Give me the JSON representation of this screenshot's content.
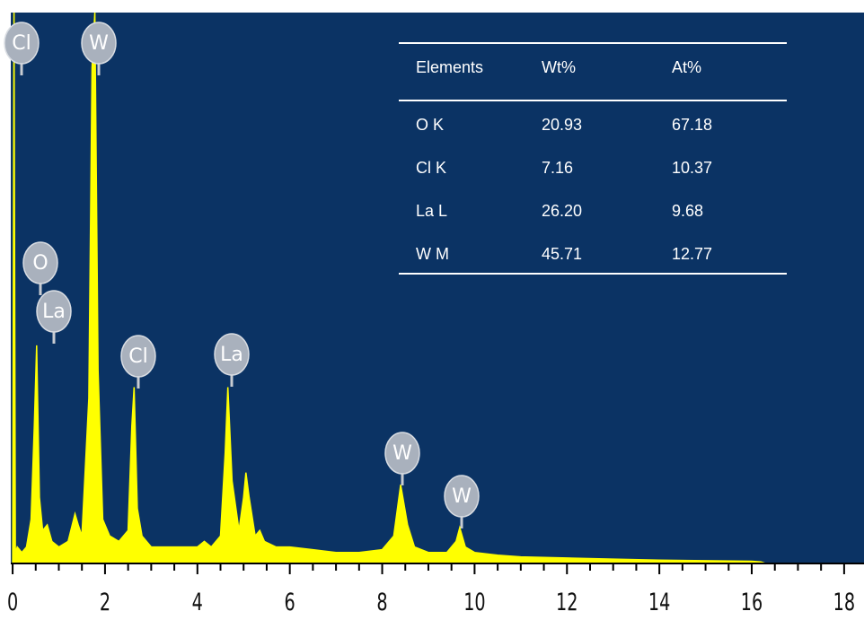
{
  "chart_data": {
    "type": "area",
    "color": "#ffff00",
    "x": [
      0,
      0.03,
      0.06,
      0.1,
      0.2,
      0.3,
      0.4,
      0.47,
      0.52,
      0.58,
      0.65,
      0.75,
      0.85,
      1.0,
      1.2,
      1.35,
      1.42,
      1.5,
      1.65,
      1.72,
      1.78,
      1.85,
      1.95,
      2.1,
      2.3,
      2.5,
      2.58,
      2.63,
      2.7,
      2.8,
      3.0,
      3.3,
      3.6,
      4.0,
      4.15,
      4.3,
      4.5,
      4.6,
      4.66,
      4.75,
      4.9,
      5.0,
      5.05,
      5.12,
      5.25,
      5.35,
      5.45,
      5.7,
      6.0,
      6.5,
      7.0,
      7.5,
      8.0,
      8.25,
      8.4,
      8.55,
      8.7,
      9.0,
      9.4,
      9.6,
      9.68,
      9.8,
      10.0,
      10.5,
      11.0,
      12,
      13,
      14,
      15,
      16,
      16.2,
      16.3,
      18
    ],
    "values": [
      0,
      100,
      2,
      3,
      2,
      3,
      8,
      25,
      39.6,
      12,
      6,
      7,
      4,
      3,
      4,
      9,
      7,
      5,
      30,
      90,
      100,
      35,
      8,
      5,
      4,
      6,
      25,
      32,
      10,
      5,
      3,
      3,
      3,
      3,
      4,
      3,
      5,
      20,
      32,
      15,
      6,
      12,
      16.5,
      12,
      5,
      6,
      4,
      3,
      3,
      2.5,
      2,
      2,
      2.5,
      5,
      14.3,
      7,
      3,
      2,
      2,
      4,
      6.5,
      3,
      2,
      1.5,
      1.2,
      1,
      0.8,
      0.6,
      0.5,
      0.4,
      0.3,
      0,
      0
    ],
    "xlim": [
      -0.04,
      18.43
    ],
    "ylim": [
      0,
      100
    ],
    "xticks": [
      0,
      2,
      4,
      6,
      8,
      10,
      12,
      14,
      16,
      18
    ],
    "xminorticks": [
      0.5,
      1,
      1.5,
      2.5,
      3,
      3.5,
      4.5,
      5,
      5.5,
      6.5,
      7,
      7.5,
      8.5,
      9,
      9.5,
      10.5,
      11,
      11.5,
      12.5,
      13,
      13.5,
      14.5,
      15,
      15.5,
      16.5,
      17,
      17.5
    ],
    "annotations": [
      "Cl",
      "W",
      "O",
      "La",
      "Cl",
      "La",
      "W",
      "W"
    ],
    "table": {
      "columns": [
        "Elements",
        "Wt%",
        "At%"
      ],
      "rows": [
        [
          "O K",
          "20.93",
          "67.18"
        ],
        [
          "Cl K",
          "7.16",
          "10.37"
        ],
        [
          "La L",
          "26.20",
          "9.68"
        ],
        [
          "W M",
          "45.71",
          "12.77"
        ]
      ]
    }
  }
}
